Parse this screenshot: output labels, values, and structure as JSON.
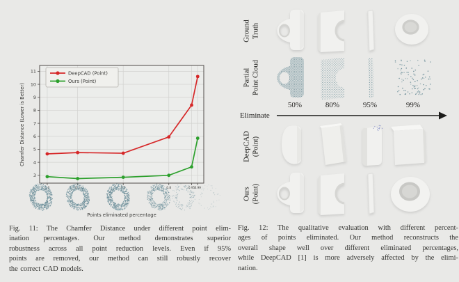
{
  "palette": {
    "page_background": "#e9e9e7",
    "deepcad_red": "#d62728",
    "ours_green": "#2ca02c",
    "pointcloud_teal": "#74959f",
    "model_gray": "#f1f1ef",
    "caption_text": "#343431"
  },
  "chart_data": {
    "type": "line",
    "title": "",
    "xlabel": "Points eliminated percentage",
    "ylabel": "Chamfer Distance (Lower is Better)",
    "x": [
      0.0,
      0.2,
      0.5,
      0.8,
      0.95,
      0.99
    ],
    "x_tick_labels": [
      "0.0",
      "0.2",
      "0.5",
      "0.8",
      "0.95",
      "0.99"
    ],
    "y_ticks": [
      3,
      4,
      5,
      6,
      7,
      8,
      9,
      10,
      11
    ],
    "xlim": [
      -0.05,
      1.03
    ],
    "ylim": [
      2.4,
      11.45
    ],
    "grid": true,
    "legend_position": "upper left",
    "series": [
      {
        "name": "DeepCAD (Point)",
        "color": "#d62728",
        "values": [
          4.65,
          4.75,
          4.7,
          5.95,
          8.4,
          10.6
        ]
      },
      {
        "name": "Ours (Point)",
        "color": "#2ca02c",
        "values": [
          2.9,
          2.75,
          2.85,
          3.0,
          3.65,
          5.85
        ]
      }
    ]
  },
  "figure11": {
    "caption_lines": [
      "Fig. 11: The Chamfer Distance under different point elim-",
      "ination percentages. Our method demonstrates superior",
      "robustness across all point reduction levels. Even if 95%",
      "points are removed, our method can still robustly recover",
      "the correct CAD models."
    ]
  },
  "figure12": {
    "row_labels": [
      "Ground\nTruth",
      "Partial\nPoint Cloud",
      "DeepCAD\n(Point)",
      "Ours\n(Point)"
    ],
    "eliminate_label": "Eliminate",
    "column_percentages": [
      "50%",
      "80%",
      "95%",
      "99%"
    ],
    "caption_lines": [
      "Fig. 12: The qualitative evaluation with different percent-",
      "ages of points eliminated. Our method reconstructs the",
      "overall shape well over different eliminated percentages,",
      "while DeepCAD [1] is more adversely affected by the elimi-",
      "nation."
    ]
  }
}
